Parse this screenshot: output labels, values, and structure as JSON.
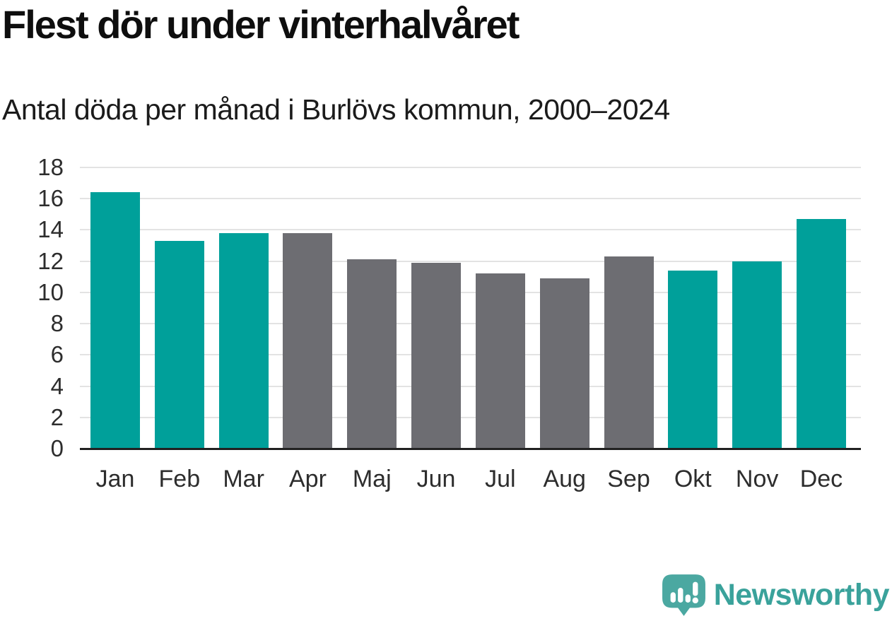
{
  "header": {
    "title": "Flest dör under vinterhalvåret",
    "subtitle": "Antal döda per månad i Burlövs kommun, 2000–2024"
  },
  "chart_data": {
    "type": "bar",
    "title": "Flest dör under vinterhalvåret",
    "subtitle": "Antal döda per månad i Burlövs kommun, 2000–2024",
    "categories": [
      "Jan",
      "Feb",
      "Mar",
      "Apr",
      "Maj",
      "Jun",
      "Jul",
      "Aug",
      "Sep",
      "Okt",
      "Nov",
      "Dec"
    ],
    "values": [
      16.4,
      13.3,
      13.8,
      13.8,
      12.1,
      11.9,
      11.2,
      10.9,
      12.3,
      11.4,
      12.0,
      14.7
    ],
    "highlighted": [
      true,
      true,
      true,
      false,
      false,
      false,
      false,
      false,
      false,
      true,
      true,
      true
    ],
    "xlabel": "",
    "ylabel": "",
    "ylim": [
      0,
      18
    ],
    "yticks": [
      0,
      2,
      4,
      6,
      8,
      10,
      12,
      14,
      16,
      18
    ],
    "grid": true,
    "legend": false
  },
  "colors": {
    "bar_highlight": "#00a09a",
    "bar_muted": "#6d6d72",
    "gridline": "#e3e3e3",
    "axis": "#212121",
    "text": "#0e0e0e",
    "logo": "#4ba8a1",
    "logo_text": "#3aa29b"
  },
  "footer": {
    "brand": "Newsworthy",
    "logo_icon": "newsworthy-speech-bubble-bar-chart-icon"
  }
}
